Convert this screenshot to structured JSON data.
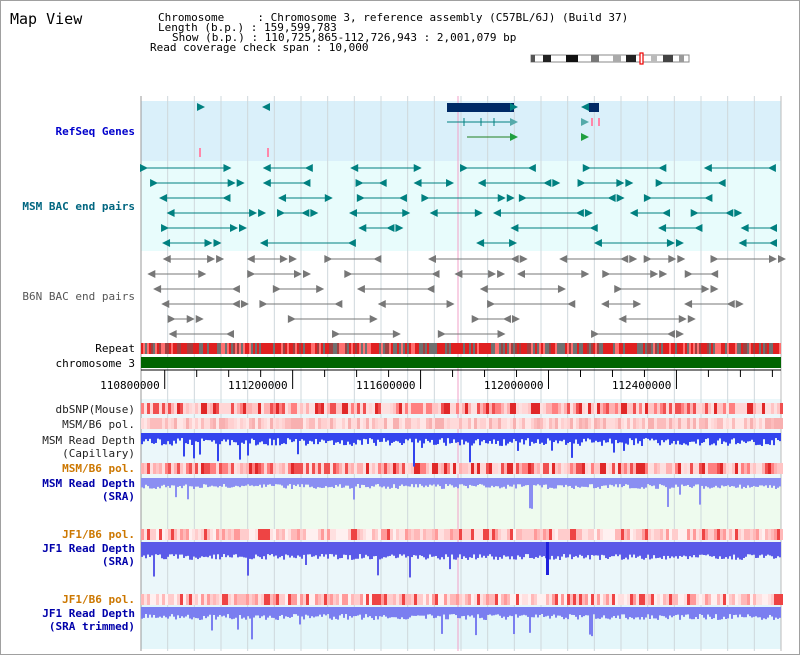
{
  "title": "Map View",
  "info": {
    "chromosome": "Chromosome     : Chromosome 3, reference assembly (C57BL/6J) (Build 37)",
    "length": "Length (b.p.) : 159,599,783",
    "show": "Show (b.p.) : 110,725,865-112,726,943 : 2,001,079 bp",
    "span": "Read coverage check span : 10,000"
  },
  "tracks": {
    "refseq": "RefSeq Genes",
    "msm_bac": "MSM BAC end pairs",
    "b6n_bac": "B6N BAC end pairs",
    "repeat": "Repeat",
    "chrom": "chromosome 3",
    "dbsnp": "dbSNP(Mouse)",
    "msm_b6_pol": "MSM/B6 pol.",
    "msm_depth_cap": "MSM Read Depth\n(Capillary)",
    "msm_b6_pol_sra": "MSM/B6 pol.",
    "msm_depth_sra": "MSM Read Depth\n(SRA)",
    "jf1_b6_pol": "JF1/B6 pol.",
    "jf1_depth_sra": "JF1 Read Depth\n(SRA)",
    "jf1_b6_pol_trim": "JF1/B6 pol.",
    "jf1_depth_trim": "JF1 Read Depth\n(SRA trimmed)"
  },
  "scale": {
    "range": [
      110725865,
      112726943
    ],
    "ticks": [
      "110800000",
      "111200000",
      "111600000",
      "112000000",
      "112400000"
    ]
  },
  "colors": {
    "refseq_label": "#0000cc",
    "msm_label": "#006680",
    "b6n_label": "#555555",
    "sra_label": "#0000aa",
    "pol_orange": "#cc7700",
    "gene_blue": "#002a66",
    "bac_teal": "#008080",
    "bac_gray": "#777777",
    "chrom_green": "#006400"
  }
}
